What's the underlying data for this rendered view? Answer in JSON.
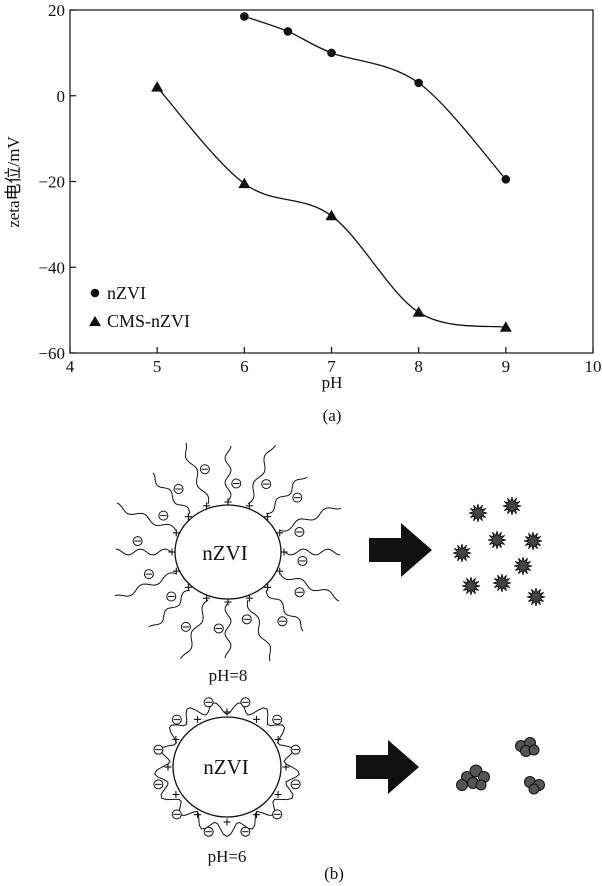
{
  "chart_data": {
    "type": "line",
    "xlabel": "pH",
    "ylabel": "zeta电位/mV",
    "xlim": [
      4,
      10
    ],
    "ylim": [
      -60,
      20
    ],
    "xticks": [
      4,
      5,
      6,
      7,
      8,
      9,
      10
    ],
    "yticks": [
      -60,
      -40,
      -20,
      0,
      20
    ],
    "grid": false,
    "legend_position": "bottom-left",
    "series": [
      {
        "name": "nZVI",
        "marker": "circle",
        "x": [
          6,
          6.5,
          7,
          8,
          9
        ],
        "y": [
          18.5,
          15,
          10,
          3,
          -19.5
        ]
      },
      {
        "name": "CMS-nZVI",
        "marker": "triangle",
        "x": [
          5,
          6,
          7,
          8,
          9
        ],
        "y": [
          2,
          -20.5,
          -28,
          -50.5,
          -54
        ]
      }
    ]
  },
  "captions": {
    "a": "(a)",
    "b": "(b)"
  },
  "diagram": {
    "particle_label": "nZVI",
    "top_condition": "pH=8",
    "bottom_condition": "pH=6"
  }
}
